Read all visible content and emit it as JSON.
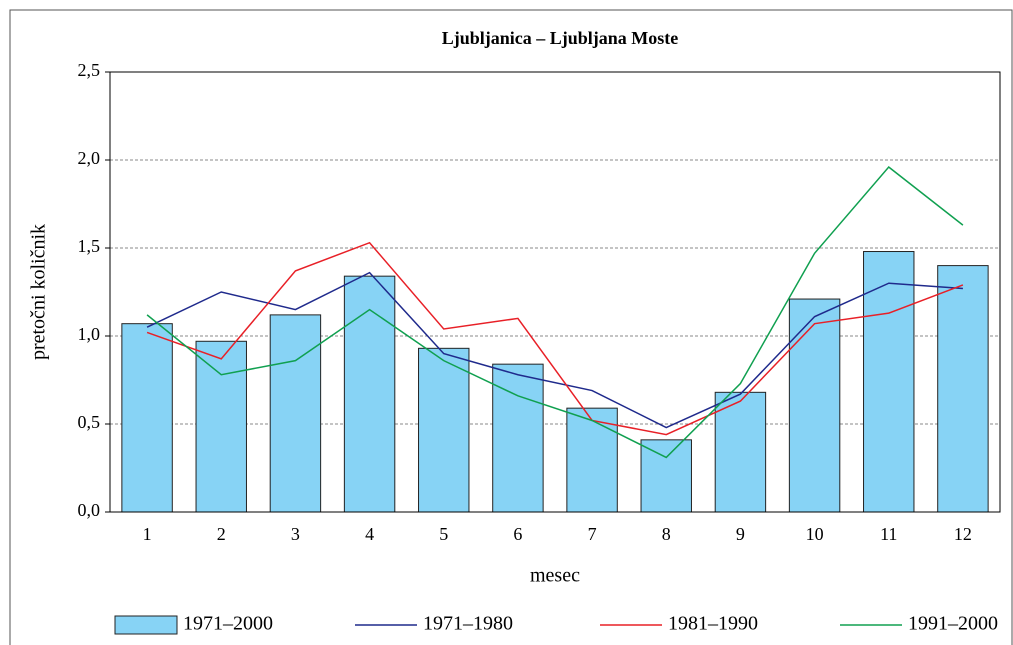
{
  "chart_data": {
    "type": "bar",
    "title": "Ljubljanica – Ljubljana Moste",
    "x_label": "mesec",
    "y_label": "pretočni količnik",
    "categories": [
      "1",
      "2",
      "3",
      "4",
      "5",
      "6",
      "7",
      "8",
      "9",
      "10",
      "11",
      "12"
    ],
    "ylim": [
      0,
      2.5
    ],
    "yticks": [
      {
        "value": 0,
        "label": "0,0"
      },
      {
        "value": 0.5,
        "label": "0,5"
      },
      {
        "value": 1,
        "label": "1,0"
      },
      {
        "value": 1.5,
        "label": "1,5"
      },
      {
        "value": 2,
        "label": "2,0"
      },
      {
        "value": 2.5,
        "label": "2,5"
      }
    ],
    "grid": true,
    "series": [
      {
        "name": "1971–2000",
        "type": "bar",
        "color": "#87d3f5",
        "values": [
          1.07,
          0.97,
          1.12,
          1.34,
          0.93,
          0.84,
          0.59,
          0.41,
          0.68,
          1.21,
          1.48,
          1.4
        ]
      },
      {
        "name": "1971–1980",
        "type": "line",
        "color": "#1f2a8c",
        "values": [
          1.05,
          1.25,
          1.15,
          1.36,
          0.9,
          0.78,
          0.69,
          0.48,
          0.67,
          1.11,
          1.3,
          1.27
        ]
      },
      {
        "name": "1981–1990",
        "type": "line",
        "color": "#e82027",
        "values": [
          1.02,
          0.87,
          1.37,
          1.53,
          1.04,
          1.1,
          0.52,
          0.44,
          0.63,
          1.07,
          1.13,
          1.29
        ]
      },
      {
        "name": "1991–2000",
        "type": "line",
        "color": "#10a050",
        "values": [
          1.12,
          0.78,
          0.86,
          1.15,
          0.86,
          0.66,
          0.52,
          0.31,
          0.73,
          1.47,
          1.96,
          1.63
        ]
      }
    ]
  }
}
